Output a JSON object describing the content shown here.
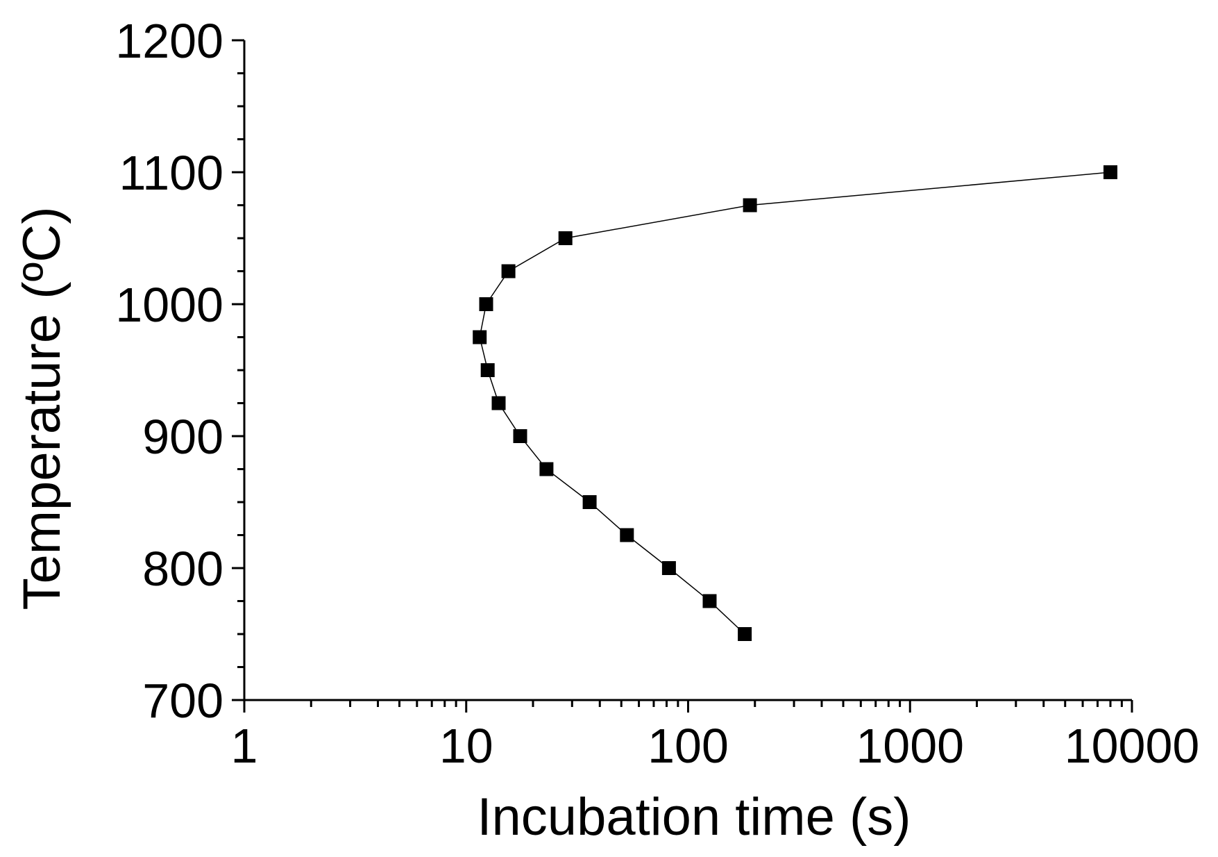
{
  "chart_data": {
    "type": "line",
    "title": "",
    "xlabel": "Incubation time  (s)",
    "ylabel": "Temperature (ºC)",
    "x_scale": "log",
    "xlim": [
      1,
      10000
    ],
    "ylim": [
      700,
      1200
    ],
    "x_tick_labels": [
      "1",
      "10",
      "100",
      "1000",
      "10000"
    ],
    "x_tick_values": [
      1,
      10,
      100,
      1000,
      10000
    ],
    "y_tick_labels": [
      "700",
      "800",
      "900",
      "1000",
      "1100",
      "1200"
    ],
    "y_tick_values": [
      700,
      800,
      900,
      1000,
      1100,
      1200
    ],
    "y_minor_step": 25,
    "grid": false,
    "legend": "none",
    "series": [
      {
        "marker": "square",
        "color": "#000000",
        "points": [
          {
            "x": 180,
            "y": 750
          },
          {
            "x": 125,
            "y": 775
          },
          {
            "x": 82,
            "y": 800
          },
          {
            "x": 53,
            "y": 825
          },
          {
            "x": 36,
            "y": 850
          },
          {
            "x": 23,
            "y": 875
          },
          {
            "x": 17.5,
            "y": 900
          },
          {
            "x": 14,
            "y": 925
          },
          {
            "x": 12.5,
            "y": 950
          },
          {
            "x": 11.5,
            "y": 975
          },
          {
            "x": 12.3,
            "y": 1000
          },
          {
            "x": 15.5,
            "y": 1025
          },
          {
            "x": 28,
            "y": 1050
          },
          {
            "x": 190,
            "y": 1075
          },
          {
            "x": 8000,
            "y": 1100
          }
        ]
      }
    ]
  }
}
